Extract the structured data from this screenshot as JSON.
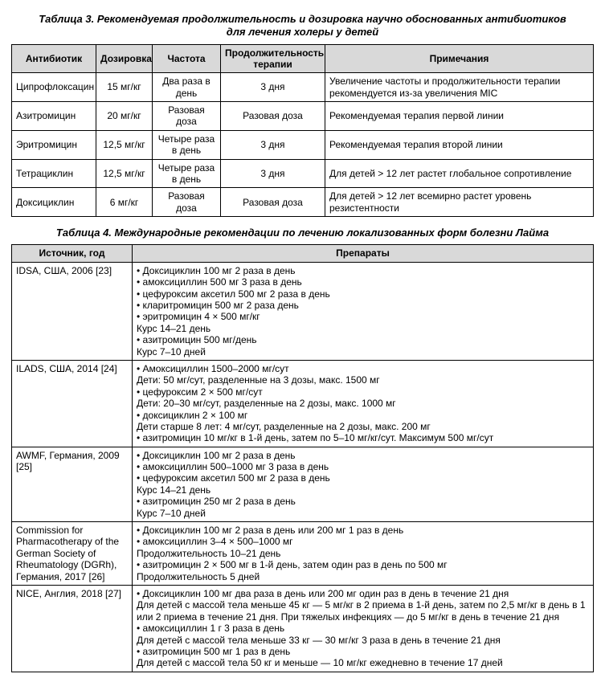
{
  "table3": {
    "caption_line1": "Таблица 3. Рекомендуемая продолжительность и дозировка научно обоснованных антибиотиков",
    "caption_line2": "для лечения холеры у детей",
    "headers": {
      "c0": "Антибиотик",
      "c1": "Дозировка",
      "c2": "Частота",
      "c3": "Продолжительность терапии",
      "c4": "Примечания"
    },
    "col_widths": [
      "105px",
      "70px",
      "85px",
      "130px",
      "auto"
    ],
    "rows": [
      {
        "c0": "Ципрофлоксацин",
        "c1": "15 мг/кг",
        "c2": "Два раза в день",
        "c3": "3 дня",
        "c4": "Увеличение частоты и продолжительности терапии рекомендуется из-за увеличения MIC"
      },
      {
        "c0": "Азитромицин",
        "c1": "20 мг/кг",
        "c2": "Разовая доза",
        "c3": "Разовая доза",
        "c4": "Рекомендуемая терапия первой линии"
      },
      {
        "c0": "Эритромицин",
        "c1": "12,5 мг/кг",
        "c2": "Четыре раза в день",
        "c3": "3 дня",
        "c4": "Рекомендуемая терапия второй линии"
      },
      {
        "c0": "Тетрациклин",
        "c1": "12,5 мг/кг",
        "c2": "Четыре раза в день",
        "c3": "3 дня",
        "c4": "Для детей > 12 лет растет глобальное сопротивление"
      },
      {
        "c0": "Доксициклин",
        "c1": "6 мг/кг",
        "c2": "Разовая доза",
        "c3": "Разовая доза",
        "c4": "Для детей > 12 лет всемирно растет уровень резистентности"
      }
    ]
  },
  "table4": {
    "caption": "Таблица 4. Международные рекомендации по лечению локализованных форм болезни Лайма",
    "headers": {
      "c0": "Источник, год",
      "c1": "Препараты"
    },
    "rows": [
      {
        "src": "IDSA, США, 2006 [23]",
        "bullets": [
          "Доксициклин 100 мг 2 раза в день",
          "амоксициллин 500 мг 3 раза в день",
          "цефуроксим аксетил 500 мг 2 раза в день",
          "кларитромицин 500 мг 2 раза день",
          "эритромицин 4 × 500 мг/кг"
        ],
        "mid1": "Курс 14–21 день",
        "bullets2": [
          "азитромицин 500 мг/день"
        ],
        "mid2": "Курс 7–10 дней"
      },
      {
        "src": "ILADS, США, 2014 [24]",
        "lines": [
          "• Амоксициллин 1500–2000 мг/сут",
          "Дети: 50 мг/сут, разделенные на 3 дозы, макс. 1500 мг",
          "• цефуроксим 2 × 500 мг/сут",
          "Дети: 20–30 мг/сут, разделенные на 2 дозы, макс. 1000 мг",
          "• доксициклин 2 × 100 мг",
          "Дети старше 8 лет: 4 мг/сут, разделенные на 2 дозы, макс. 200 мг",
          "• азитромицин 10 мг/кг в 1-й день, затем по 5–10 мг/кг/сут. Максимум 500 мг/сут"
        ]
      },
      {
        "src": "AWMF, Германия, 2009 [25]",
        "bullets": [
          "Доксициклин 100 мг 2 раза в день",
          "амоксициллин 500–1000 мг 3 раза в день",
          "цефуроксим аксетил 500 мг 2 раза в день"
        ],
        "mid1": "Курс 14–21 день",
        "bullets2": [
          "азитромицин 250 мг 2 раза в день"
        ],
        "mid2": "Курс 7–10 дней"
      },
      {
        "src": "Commission for Pharmacotherapy of the German Society of Rheumatology (DGRh), Германия, 2017 [26]",
        "lines": [
          "• Доксициклин 100 мг 2 раза в день или 200 мг 1 раз в день",
          "• амоксициллин 3–4 × 500–1000 мг",
          "Продолжительность 10–21 день",
          "• азитромицин 2 × 500 мг в 1-й день, затем один раз в день по 500 мг",
          "Продолжительность 5 дней"
        ]
      },
      {
        "src": "NICE, Англия, 2018 [27]",
        "lines": [
          "• Доксициклин 100 мг два раза в день или 200 мг один раз в день в течение 21 дня",
          "Для детей с массой тела меньше 45 кг — 5 мг/кг в 2 приема в 1-й день, затем по 2,5 мг/кг в день в 1 или 2 приема в течение 21 дня. При тяжелых инфекциях — до 5 мг/кг в день в течение 21 дня",
          "• амоксициллин 1 г 3 раза в день",
          "Для детей с массой тела меньше 33 кг — 30 мг/кг 3 раза в день в течение 21 дня",
          "• азитромицин 500 мг 1 раз в день",
          "Для детей с массой тела 50 кг и меньше — 10 мг/кг ежедневно в течение 17 дней"
        ]
      }
    ]
  }
}
